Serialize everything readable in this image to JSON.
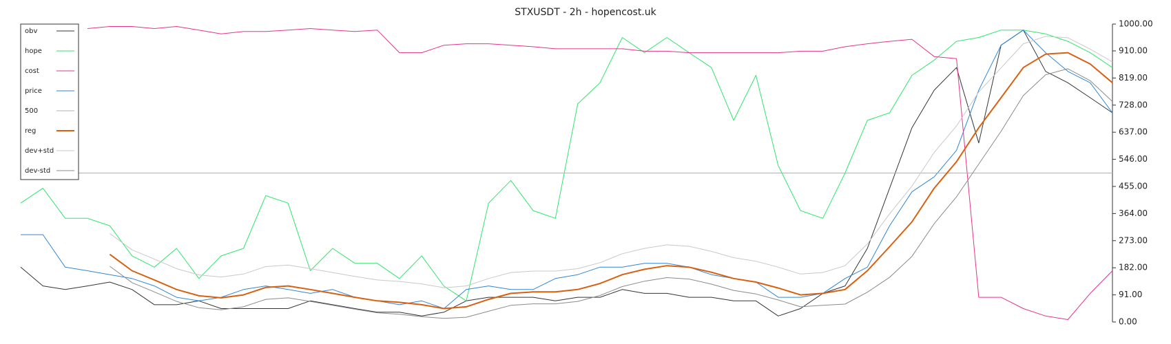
{
  "chart_data": {
    "type": "line",
    "title": "STXUSDT - 2h - hopencost.uk",
    "ylim": [
      0,
      1000
    ],
    "y_axis_side": "right",
    "legend_loc": "upper left",
    "yticks": [
      {
        "value": 0,
        "label": "0.00"
      },
      {
        "value": 91,
        "label": "91.00"
      },
      {
        "value": 182,
        "label": "182.00"
      },
      {
        "value": 273,
        "label": "273.00"
      },
      {
        "value": 364,
        "label": "364.00"
      },
      {
        "value": 455,
        "label": "455.00"
      },
      {
        "value": 546,
        "label": "546.00"
      },
      {
        "value": 637,
        "label": "637.00"
      },
      {
        "value": 728,
        "label": "728.00"
      },
      {
        "value": 819,
        "label": "819.00"
      },
      {
        "value": 910,
        "label": "910.00"
      },
      {
        "value": 1000,
        "label": "1000.00"
      }
    ],
    "series": [
      {
        "name": "obv",
        "color": "#333333",
        "linewidth": 1,
        "values": [
          184,
          121,
          109,
          121,
          134,
          109,
          58,
          58,
          71,
          45,
          45,
          45,
          45,
          71,
          58,
          45,
          33,
          33,
          20,
          33,
          71,
          83,
          83,
          83,
          71,
          83,
          83,
          109,
          96,
          96,
          83,
          83,
          71,
          71,
          20,
          45,
          96,
          121,
          247,
          449,
          652,
          778,
          854,
          601,
          929,
          980,
          841,
          803,
          753,
          702
        ]
      },
      {
        "name": "hope",
        "color": "#2ee66b",
        "linewidth": 1,
        "values": [
          399,
          449,
          348,
          348,
          323,
          222,
          184,
          247,
          146,
          222,
          247,
          424,
          399,
          172,
          247,
          197,
          197,
          146,
          222,
          120,
          71,
          399,
          475,
          374,
          348,
          732,
          803,
          955,
          904,
          955,
          904,
          854,
          677,
          828,
          525,
          374,
          348,
          500,
          677,
          702,
          828,
          879,
          942,
          955,
          980,
          980,
          967,
          942,
          904,
          854
        ]
      },
      {
        "name": "cost",
        "color": "#e6338c",
        "linewidth": 1,
        "values": [
          null,
          null,
          null,
          985,
          992,
          992,
          985,
          992,
          980,
          967,
          975,
          975,
          980,
          985,
          980,
          975,
          980,
          904,
          904,
          929,
          934,
          934,
          929,
          924,
          917,
          917,
          917,
          917,
          909,
          909,
          904,
          904,
          904,
          904,
          904,
          909,
          909,
          924,
          934,
          942,
          949,
          891,
          884,
          83,
          83,
          45,
          20,
          8,
          96,
          172
        ]
      },
      {
        "name": "price",
        "color": "#2f86d6",
        "linewidth": 1,
        "values": [
          293,
          293,
          184,
          172,
          159,
          146,
          121,
          83,
          71,
          83,
          109,
          121,
          109,
          96,
          109,
          83,
          71,
          58,
          71,
          45,
          109,
          121,
          109,
          109,
          146,
          159,
          184,
          184,
          197,
          197,
          184,
          159,
          146,
          134,
          83,
          83,
          96,
          146,
          184,
          323,
          437,
          487,
          576,
          778,
          929,
          980,
          904,
          841,
          803,
          702
        ]
      },
      {
        "name": "500",
        "color": "#b0b0b0",
        "linewidth": 1,
        "values": [
          500,
          500,
          500,
          500,
          500,
          500,
          500,
          500,
          500,
          500,
          500,
          500,
          500,
          500,
          500,
          500,
          500,
          500,
          500,
          500,
          500,
          500,
          500,
          500,
          500,
          500,
          500,
          500,
          500,
          500,
          500,
          500,
          500,
          500,
          500,
          500,
          500,
          500,
          500,
          500,
          500,
          500,
          500,
          500,
          500,
          500,
          500,
          500,
          500,
          500
        ]
      },
      {
        "name": "reg",
        "color": "#d95f0e",
        "linewidth": 2,
        "values": [
          null,
          null,
          null,
          null,
          227,
          172,
          141,
          109,
          88,
          81,
          91,
          116,
          121,
          109,
          96,
          83,
          71,
          66,
          58,
          45,
          51,
          76,
          96,
          101,
          101,
          109,
          129,
          159,
          177,
          189,
          184,
          167,
          146,
          134,
          114,
          91,
          96,
          109,
          172,
          253,
          336,
          449,
          538,
          652,
          753,
          854,
          899,
          904,
          866,
          803
        ]
      },
      {
        "name": "dev+std",
        "color": "#c8c8c8",
        "linewidth": 1,
        "values": [
          null,
          null,
          null,
          null,
          297,
          242,
          211,
          179,
          158,
          151,
          161,
          186,
          191,
          179,
          166,
          153,
          141,
          136,
          128,
          115,
          121,
          146,
          166,
          171,
          171,
          179,
          199,
          229,
          247,
          259,
          254,
          237,
          216,
          204,
          184,
          161,
          166,
          189,
          262,
          363,
          456,
          569,
          658,
          772,
          853,
          934,
          959,
          954,
          916,
          873
        ]
      },
      {
        "name": "dev-std",
        "color": "#8a8a8a",
        "linewidth": 1,
        "values": [
          null,
          null,
          null,
          null,
          187,
          132,
          101,
          69,
          48,
          41,
          51,
          76,
          81,
          69,
          56,
          43,
          31,
          26,
          18,
          12,
          16,
          36,
          56,
          61,
          61,
          69,
          89,
          119,
          137,
          149,
          144,
          127,
          106,
          94,
          74,
          51,
          56,
          60,
          100,
          150,
          220,
          330,
          420,
          530,
          640,
          760,
          830,
          850,
          810,
          740
        ]
      }
    ]
  }
}
